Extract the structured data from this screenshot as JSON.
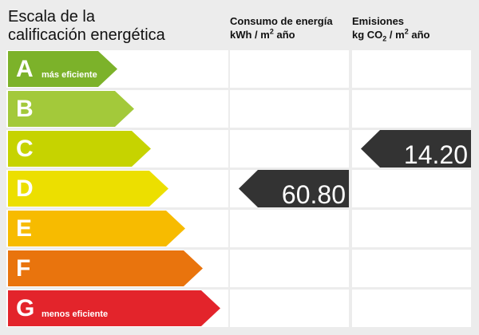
{
  "title_line1": "Escala de la",
  "title_line2": "calificación energética",
  "consumo_header": {
    "line1": "Consumo de energía",
    "unit_a": "kWh / m",
    "unit_sup": "2",
    "unit_b": " año"
  },
  "emisiones_header": {
    "line1": "Emisiones",
    "unit_a": "kg CO",
    "unit_sub": "2",
    "unit_mid": " / m",
    "unit_sup": "2",
    "unit_b": " año"
  },
  "bands": [
    {
      "letter": "A",
      "desc": "más eficiente",
      "color": "#7cb22a"
    },
    {
      "letter": "B",
      "desc": "",
      "color": "#a3c93a"
    },
    {
      "letter": "C",
      "desc": "",
      "color": "#c6d300"
    },
    {
      "letter": "D",
      "desc": "",
      "color": "#ecdf00"
    },
    {
      "letter": "E",
      "desc": "",
      "color": "#f7bb00"
    },
    {
      "letter": "F",
      "desc": "",
      "color": "#e9740d"
    },
    {
      "letter": "G",
      "desc": "menos eficiente",
      "color": "#e3242b"
    }
  ],
  "consumo": {
    "value": "60.80",
    "rating": "D"
  },
  "emisiones": {
    "value": "14.20",
    "rating": "C"
  },
  "indicator_color": "#333333"
}
